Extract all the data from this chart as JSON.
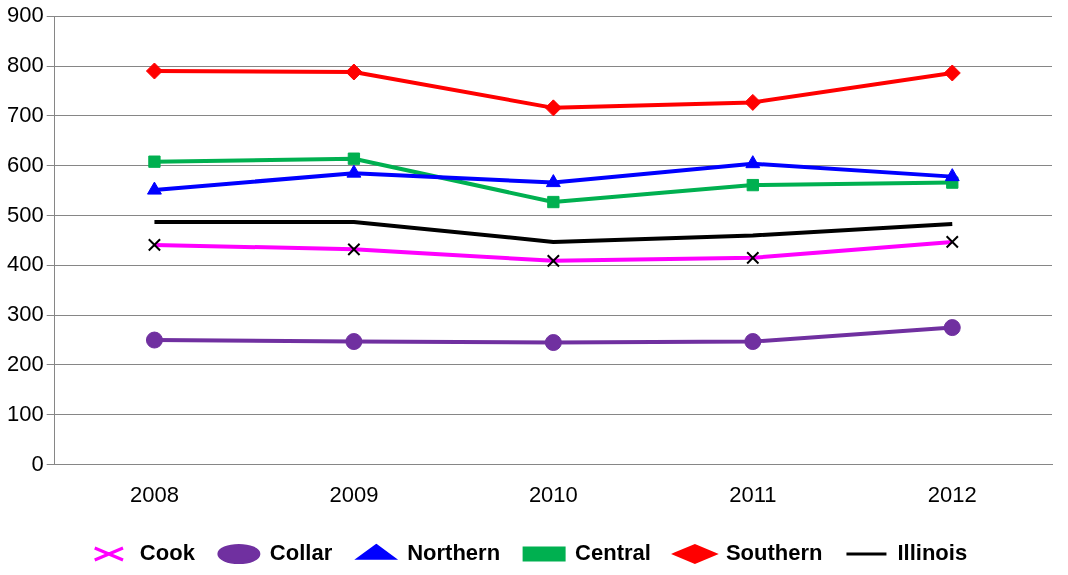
{
  "chart_data": {
    "type": "line",
    "categories": [
      "2008",
      "2009",
      "2010",
      "2011",
      "2012"
    ],
    "series": [
      {
        "name": "Cook",
        "color": "#ff00ff",
        "marker": "cross",
        "values": [
          441,
          432,
          409,
          415,
          447
        ]
      },
      {
        "name": "Collar",
        "color": "#7030a0",
        "marker": "circle",
        "values": [
          250,
          247,
          245,
          247,
          275
        ]
      },
      {
        "name": "Northern",
        "color": "#0000ff",
        "marker": "triangle",
        "values": [
          551,
          585,
          566,
          604,
          578
        ]
      },
      {
        "name": "Central",
        "color": "#00b050",
        "marker": "square",
        "values": [
          608,
          614,
          527,
          561,
          566
        ]
      },
      {
        "name": "Southern",
        "color": "#ff0000",
        "marker": "diamond",
        "values": [
          790,
          788,
          716,
          727,
          786
        ]
      },
      {
        "name": "Illinois",
        "color": "#000000",
        "marker": "none",
        "values": [
          487,
          487,
          447,
          460,
          483
        ]
      }
    ],
    "ylim": [
      0,
      900
    ],
    "yticks": [
      0,
      100,
      200,
      300,
      400,
      500,
      600,
      700,
      800,
      900
    ],
    "grid": "y",
    "legend": "bottom",
    "line_style": "solid"
  }
}
